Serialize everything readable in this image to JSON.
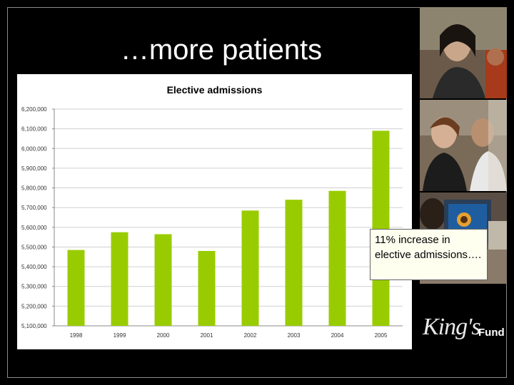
{
  "slide": {
    "title": "…more patients"
  },
  "callout": {
    "text": "11% increase in elective admissions…."
  },
  "logo": {
    "script": "King's",
    "word": "Fund"
  },
  "photos": [
    {
      "name": "woman-thinking-photo"
    },
    {
      "name": "smiling-woman-photo"
    },
    {
      "name": "computer-screen-photo"
    }
  ],
  "colors": {
    "bar": "#99cc00",
    "background": "#000000",
    "chart_bg": "#ffffff"
  },
  "chart_data": {
    "type": "bar",
    "title": "Elective admissions",
    "xlabel": "",
    "ylabel": "",
    "categories": [
      "1998",
      "1999",
      "2000",
      "2001",
      "2002",
      "2003",
      "2004",
      "2005"
    ],
    "values": [
      5485000,
      5575000,
      5565000,
      5480000,
      5685000,
      5740000,
      5785000,
      6090000
    ],
    "ylim": [
      5100000,
      6200000
    ],
    "yticks": [
      5100000,
      5200000,
      5300000,
      5400000,
      5500000,
      5600000,
      5700000,
      5800000,
      5900000,
      6000000,
      6100000,
      6200000
    ],
    "ytick_labels": [
      "5,100,000",
      "5,200,000",
      "5,300,000",
      "5,400,000",
      "5,500,000",
      "5,600,000",
      "5,700,000",
      "5,800,000",
      "5,900,000",
      "6,000,000",
      "6,100,000",
      "6,200,000"
    ],
    "grid": true,
    "legend": "none"
  }
}
